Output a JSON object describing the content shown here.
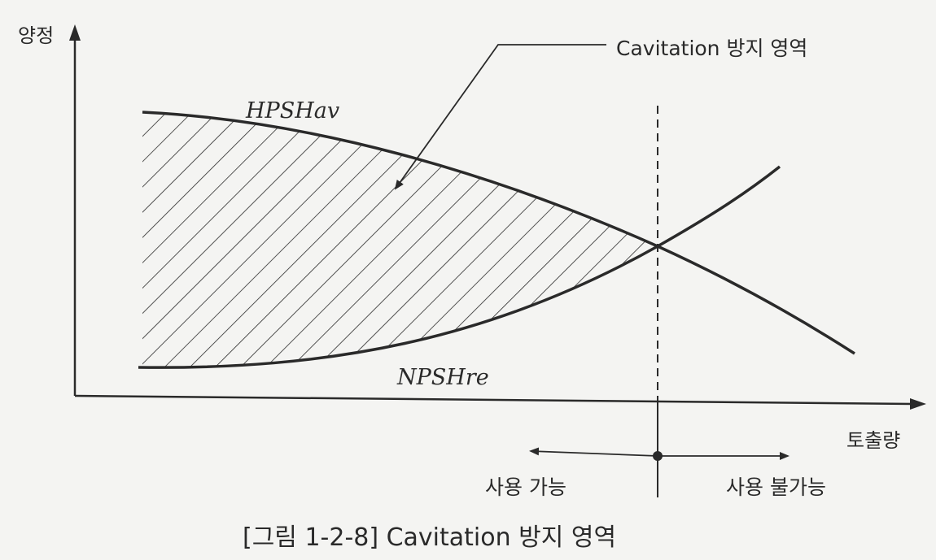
{
  "axes": {
    "y_label": "양정",
    "x_label": "토출량"
  },
  "curves": {
    "upper_label": "HPSHav",
    "lower_label": "NPSHre"
  },
  "annotation": "Cavitation 방지 영역",
  "zones": {
    "left": "사용 가능",
    "right": "사용 불가능"
  },
  "caption": "[그림 1-2-8] Cavitation 방지 영역",
  "colors": {
    "background": "#f4f4f2",
    "ink": "#2a2a2a"
  }
}
